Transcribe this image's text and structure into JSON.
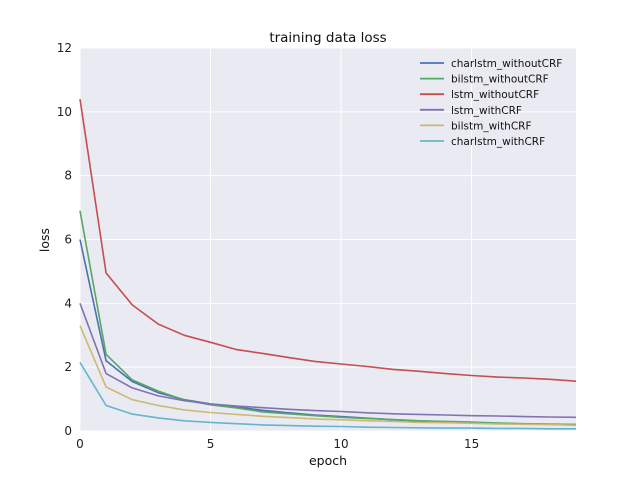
{
  "chart_data": {
    "type": "line",
    "title": "training data loss",
    "xlabel": "epoch",
    "ylabel": "loss",
    "xlim": [
      0,
      19
    ],
    "ylim": [
      0,
      12
    ],
    "xticks": [
      0,
      5,
      10,
      15
    ],
    "yticks": [
      0,
      2,
      4,
      6,
      8,
      10,
      12
    ],
    "grid": true,
    "legend_position": "top-right",
    "x": [
      0,
      1,
      2,
      3,
      4,
      5,
      6,
      7,
      8,
      9,
      10,
      11,
      12,
      13,
      14,
      15,
      16,
      17,
      18,
      19
    ],
    "series": [
      {
        "name": "charlstm_withoutCRF",
        "color": "#4c72b0",
        "values": [
          6.0,
          2.2,
          1.55,
          1.2,
          0.98,
          0.85,
          0.75,
          0.65,
          0.57,
          0.5,
          0.45,
          0.4,
          0.35,
          0.31,
          0.28,
          0.26,
          0.24,
          0.22,
          0.21,
          0.2
        ]
      },
      {
        "name": "bilstm_withoutCRF",
        "color": "#55a868",
        "values": [
          6.9,
          2.4,
          1.6,
          1.25,
          0.97,
          0.82,
          0.72,
          0.6,
          0.54,
          0.48,
          0.43,
          0.39,
          0.36,
          0.32,
          0.3,
          0.28,
          0.25,
          0.23,
          0.22,
          0.2
        ]
      },
      {
        "name": "lstm_withoutCRF",
        "color": "#c44e52",
        "values": [
          10.4,
          4.95,
          3.95,
          3.35,
          3.0,
          2.78,
          2.55,
          2.43,
          2.3,
          2.18,
          2.1,
          2.02,
          1.93,
          1.87,
          1.8,
          1.74,
          1.69,
          1.66,
          1.62,
          1.56
        ]
      },
      {
        "name": "lstm_withCRF",
        "color": "#8172b2",
        "values": [
          4.0,
          1.8,
          1.35,
          1.1,
          0.95,
          0.85,
          0.78,
          0.73,
          0.68,
          0.64,
          0.61,
          0.57,
          0.54,
          0.52,
          0.5,
          0.48,
          0.47,
          0.45,
          0.44,
          0.43
        ]
      },
      {
        "name": "bilstm_withCRF",
        "color": "#ccb974",
        "values": [
          3.3,
          1.38,
          0.98,
          0.8,
          0.66,
          0.58,
          0.52,
          0.46,
          0.42,
          0.38,
          0.35,
          0.32,
          0.3,
          0.27,
          0.26,
          0.24,
          0.22,
          0.21,
          0.2,
          0.18
        ]
      },
      {
        "name": "charlstm_withCRF",
        "color": "#64b5cd",
        "values": [
          2.15,
          0.8,
          0.53,
          0.41,
          0.32,
          0.27,
          0.23,
          0.19,
          0.17,
          0.15,
          0.14,
          0.12,
          0.11,
          0.1,
          0.09,
          0.09,
          0.08,
          0.08,
          0.07,
          0.07
        ]
      }
    ]
  }
}
